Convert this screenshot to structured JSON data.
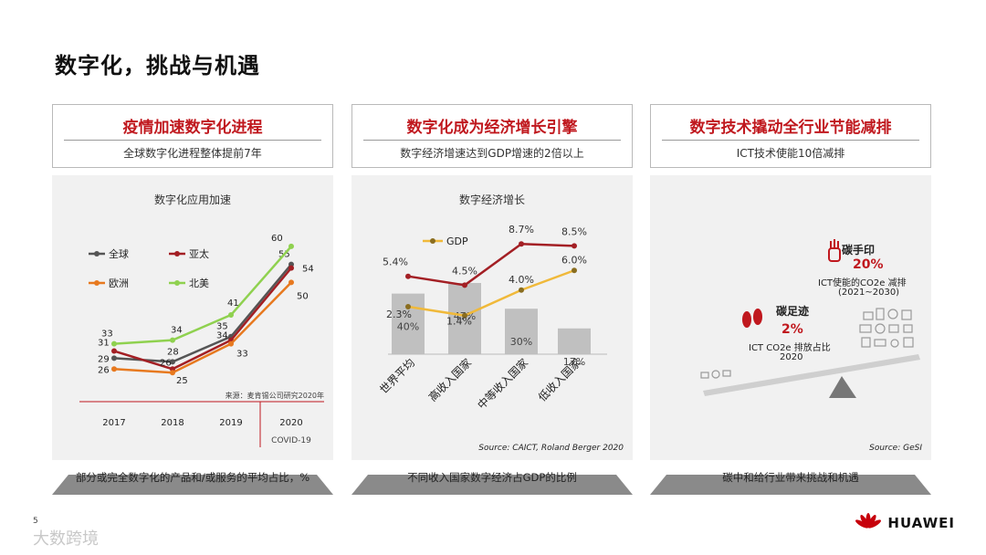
{
  "slide": {
    "title": "数字化，挑战与机遇",
    "page_number": "5",
    "watermark": "大数跨境",
    "brand": "HUAWEI",
    "brand_color": "#c7000b"
  },
  "panels": [
    {
      "heading": "疫情加速数字化进程",
      "subheading": "全球数字化进程整体提前7年",
      "footer": "部分或完全数字化的产品和/或服务的平均占比，%"
    },
    {
      "heading": "数字化成为经济增长引擎",
      "subheading": "数字经济增速达到GDP增速的2倍以上",
      "footer": "不同收入国家数字经济占GDP的比例"
    },
    {
      "heading": "数字技术撬动全行业节能减排",
      "subheading": "ICT技术使能10倍减排",
      "footer": "碳中和给行业带来挑战和机遇"
    }
  ],
  "chart_data": [
    {
      "type": "line",
      "title": "数字化应用加速",
      "categories": [
        "2017",
        "2018",
        "2019",
        "2020"
      ],
      "series": [
        {
          "name": "全球",
          "color": "#555555",
          "values": [
            29,
            28,
            35,
            55
          ]
        },
        {
          "name": "亚太",
          "color": "#a31f24",
          "values": [
            31,
            26,
            34,
            54
          ]
        },
        {
          "name": "欧洲",
          "color": "#e7791f",
          "values": [
            26,
            25,
            33,
            50
          ]
        },
        {
          "name": "北美",
          "color": "#8fd14f",
          "values": [
            33,
            34,
            41,
            60
          ]
        }
      ],
      "ylim": [
        20,
        62
      ],
      "legend": "top-left",
      "annotation": "COVID-19",
      "source": "来源：麦肯锡公司研究2020年"
    },
    {
      "type": "bar",
      "title": "数字经济增长",
      "categories": [
        "世界平均",
        "高收入国家",
        "中等收入国家",
        "低收入国家"
      ],
      "bar_series": {
        "name": "数字经济占GDP比例",
        "color": "#c0c0c0",
        "values": [
          40,
          47,
          30,
          17
        ],
        "labels": [
          "40%",
          "47%",
          "30%",
          "17%"
        ]
      },
      "line_series": [
        {
          "name": "GDP",
          "color": "#f0b93a",
          "values": [
            2.3,
            1.4,
            4.0,
            6.0
          ],
          "labels": [
            "2.3%",
            "1.4%",
            "4.0%",
            "6.0%"
          ]
        },
        {
          "name": "",
          "color": "#a31f24",
          "values": [
            5.4,
            4.5,
            8.7,
            8.5
          ],
          "labels": [
            "5.4%",
            "4.5%",
            "8.7%",
            "8.5%"
          ]
        }
      ],
      "legend": "top-left",
      "source": "Source: CAICT, Roland Berger 2020"
    }
  ],
  "carbon": {
    "footprint_title": "碳足迹",
    "footprint_value": "2%",
    "footprint_desc_1": "ICT CO2e 排放占比",
    "footprint_desc_2": "2020",
    "handprint_title": "碳手印",
    "handprint_value": "20%",
    "handprint_desc_1": "ICT使能的CO2e 减排",
    "handprint_desc_2": "(2021~2030)",
    "source": "Source: GeSI",
    "accent": "#c0181e"
  }
}
